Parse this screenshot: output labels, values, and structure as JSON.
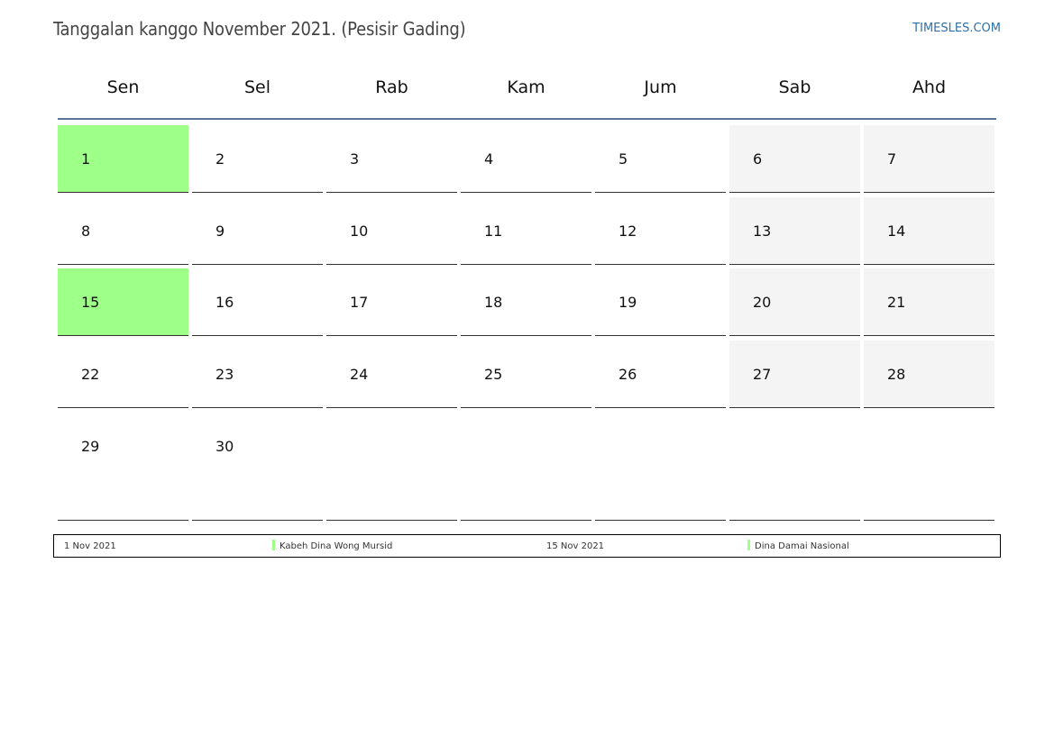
{
  "header": {
    "title": "Tanggalan kanggo November 2021. (Pesisir Gading)",
    "site": "TIMESLES.COM"
  },
  "weekdays": [
    "Sen",
    "Sel",
    "Rab",
    "Kam",
    "Jum",
    "Sab",
    "Ahd"
  ],
  "weeks": [
    [
      "1",
      "2",
      "3",
      "4",
      "5",
      "6",
      "7"
    ],
    [
      "8",
      "9",
      "10",
      "11",
      "12",
      "13",
      "14"
    ],
    [
      "15",
      "16",
      "17",
      "18",
      "19",
      "20",
      "21"
    ],
    [
      "22",
      "23",
      "24",
      "25",
      "26",
      "27",
      "28"
    ],
    [
      "29",
      "30",
      "",
      "",
      "",
      "",
      ""
    ]
  ],
  "holidays": [
    {
      "date": "1 Nov 2021",
      "name": "Kabeh Dina Wong Mursid",
      "day": "1"
    },
    {
      "date": "15 Nov 2021",
      "name": "Dina Damai Nasional",
      "day": "15"
    }
  ],
  "colors": {
    "holiday": "#9eff89",
    "weekend": "#f4f4f4",
    "header_line": "#5b7599",
    "link": "#2f6fa9"
  }
}
